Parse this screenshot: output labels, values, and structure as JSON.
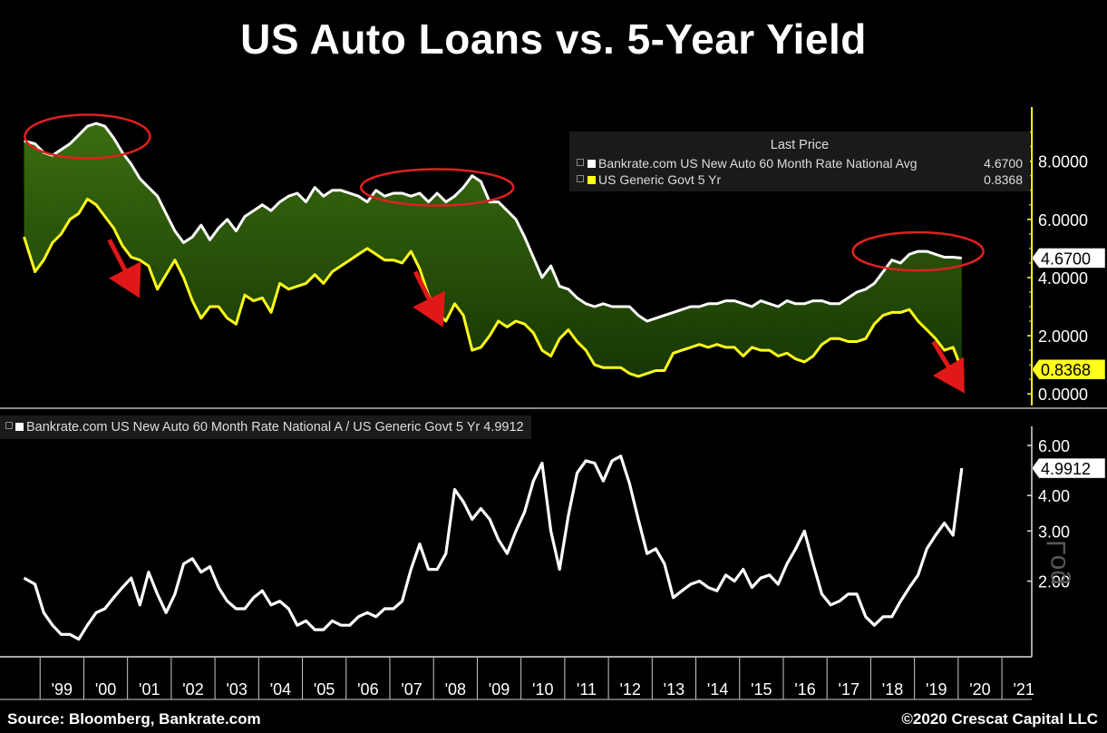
{
  "title": "US Auto Loans vs. 5-Year Yield",
  "footer": {
    "source": "Source: Bloomberg, Bankrate.com",
    "copyright": "©2020 Crescat Capital LLC"
  },
  "colors": {
    "background": "#000000",
    "auto_line": "#ffffff",
    "yield_line": "#ffff1a",
    "fill_top": "#3b6d10",
    "fill_bottom": "#173704",
    "annotation_circle": "#e02020",
    "arrow": "#e01818"
  },
  "upper_legend": {
    "header": "Last Price",
    "rows": [
      {
        "label": "Bankrate.com US New Auto 60 Month Rate National Avg",
        "value": "4.6700",
        "color": "#ffffff"
      },
      {
        "label": "US Generic Govt 5 Yr",
        "value": "0.8368",
        "color": "#ffff1a"
      }
    ]
  },
  "lower_legend": {
    "label": "Bankrate.com US New Auto 60 Month Rate National A / US Generic Govt 5 Yr",
    "value": "4.9912"
  },
  "log_label": "Log",
  "chart_data": [
    {
      "type": "area",
      "title": "",
      "y_scale": "linear",
      "ylim": [
        -0.4,
        9.8
      ],
      "y_ticks": [
        "0.0000",
        "2.0000",
        "4.0000",
        "6.0000",
        "8.0000"
      ],
      "x_ticks": [
        "'99",
        "'00",
        "'01",
        "'02",
        "'03",
        "'04",
        "'05",
        "'06",
        "'07",
        "'08",
        "'09",
        "'10",
        "'11",
        "'12",
        "'13",
        "'14",
        "'15",
        "'16",
        "'17",
        "'18",
        "'19",
        "'20",
        "'21"
      ],
      "last_value_tags": [
        "4.6700",
        "0.8368"
      ],
      "annotations": [
        "circle ~1999.6-2000.4 peak",
        "circle ~2007.2-2008.7 peak",
        "circle ~2018.5-2019.5 peak",
        "down arrows near 2000, 2007, 2019"
      ],
      "series": [
        {
          "name": "Bankrate.com US New Auto 60 Month Rate National Avg",
          "x": [
            1998.55,
            1998.8,
            1999.0,
            1999.2,
            1999.4,
            1999.6,
            1999.8,
            2000.0,
            2000.2,
            2000.4,
            2000.6,
            2000.8,
            2001.0,
            2001.2,
            2001.4,
            2001.6,
            2001.8,
            2002.0,
            2002.2,
            2002.4,
            2002.6,
            2002.8,
            2003.0,
            2003.2,
            2003.4,
            2003.6,
            2003.8,
            2004.0,
            2004.2,
            2004.4,
            2004.6,
            2004.8,
            2005.0,
            2005.2,
            2005.4,
            2005.6,
            2005.8,
            2006.0,
            2006.2,
            2006.4,
            2006.6,
            2006.8,
            2007.0,
            2007.2,
            2007.4,
            2007.6,
            2007.8,
            2008.0,
            2008.2,
            2008.4,
            2008.6,
            2008.8,
            2009.0,
            2009.2,
            2009.4,
            2009.6,
            2009.8,
            2010.0,
            2010.2,
            2010.4,
            2010.6,
            2010.8,
            2011.0,
            2011.2,
            2011.4,
            2011.6,
            2011.8,
            2012.0,
            2012.2,
            2012.4,
            2012.6,
            2012.8,
            2013.0,
            2013.2,
            2013.4,
            2013.6,
            2013.8,
            2014.0,
            2014.2,
            2014.4,
            2014.6,
            2014.8,
            2015.0,
            2015.2,
            2015.4,
            2015.6,
            2015.8,
            2016.0,
            2016.2,
            2016.4,
            2016.6,
            2016.8,
            2017.0,
            2017.2,
            2017.4,
            2017.6,
            2017.8,
            2018.0,
            2018.2,
            2018.4,
            2018.6,
            2018.8,
            2019.0,
            2019.2,
            2019.4,
            2019.6,
            2019.8,
            2020.0
          ],
          "values": [
            8.7,
            8.6,
            8.3,
            8.2,
            8.4,
            8.6,
            8.9,
            9.2,
            9.3,
            9.2,
            8.8,
            8.3,
            7.9,
            7.4,
            7.1,
            6.8,
            6.2,
            5.6,
            5.2,
            5.4,
            5.8,
            5.3,
            5.7,
            6.0,
            5.6,
            6.1,
            6.3,
            6.5,
            6.3,
            6.6,
            6.8,
            6.9,
            6.6,
            7.1,
            6.8,
            7.0,
            7.0,
            6.9,
            6.8,
            6.6,
            7.0,
            6.8,
            6.9,
            6.9,
            6.8,
            6.9,
            6.6,
            6.9,
            6.6,
            6.8,
            7.1,
            7.5,
            7.3,
            6.6,
            6.6,
            6.3,
            6.0,
            5.4,
            4.7,
            4.0,
            4.4,
            3.7,
            3.6,
            3.3,
            3.1,
            3.0,
            3.1,
            3.0,
            3.0,
            3.0,
            2.7,
            2.5,
            2.6,
            2.7,
            2.8,
            2.9,
            3.0,
            3.0,
            3.1,
            3.1,
            3.2,
            3.2,
            3.1,
            3.0,
            3.2,
            3.1,
            3.0,
            3.2,
            3.1,
            3.1,
            3.2,
            3.2,
            3.1,
            3.1,
            3.3,
            3.5,
            3.6,
            3.8,
            4.2,
            4.6,
            4.5,
            4.8,
            4.9,
            4.9,
            4.8,
            4.7,
            4.7,
            4.67
          ]
        },
        {
          "name": "US Generic Govt 5 Yr",
          "x": [
            1998.55,
            1998.8,
            1999.0,
            1999.2,
            1999.4,
            1999.6,
            1999.8,
            2000.0,
            2000.2,
            2000.4,
            2000.6,
            2000.8,
            2001.0,
            2001.2,
            2001.4,
            2001.6,
            2001.8,
            2002.0,
            2002.2,
            2002.4,
            2002.6,
            2002.8,
            2003.0,
            2003.2,
            2003.4,
            2003.6,
            2003.8,
            2004.0,
            2004.2,
            2004.4,
            2004.6,
            2004.8,
            2005.0,
            2005.2,
            2005.4,
            2005.6,
            2005.8,
            2006.0,
            2006.2,
            2006.4,
            2006.6,
            2006.8,
            2007.0,
            2007.2,
            2007.4,
            2007.6,
            2007.8,
            2008.0,
            2008.2,
            2008.4,
            2008.6,
            2008.8,
            2009.0,
            2009.2,
            2009.4,
            2009.6,
            2009.8,
            2010.0,
            2010.2,
            2010.4,
            2010.6,
            2010.8,
            2011.0,
            2011.2,
            2011.4,
            2011.6,
            2011.8,
            2012.0,
            2012.2,
            2012.4,
            2012.6,
            2012.8,
            2013.0,
            2013.2,
            2013.4,
            2013.6,
            2013.8,
            2014.0,
            2014.2,
            2014.4,
            2014.6,
            2014.8,
            2015.0,
            2015.2,
            2015.4,
            2015.6,
            2015.8,
            2016.0,
            2016.2,
            2016.4,
            2016.6,
            2016.8,
            2017.0,
            2017.2,
            2017.4,
            2017.6,
            2017.8,
            2018.0,
            2018.2,
            2018.4,
            2018.6,
            2018.8,
            2019.0,
            2019.2,
            2019.4,
            2019.6,
            2019.8,
            2020.0
          ],
          "values": [
            5.4,
            4.2,
            4.6,
            5.2,
            5.5,
            6.0,
            6.2,
            6.7,
            6.5,
            6.1,
            5.7,
            5.1,
            4.7,
            4.6,
            4.4,
            3.6,
            4.1,
            4.6,
            4.0,
            3.2,
            2.6,
            3.0,
            3.0,
            2.6,
            2.4,
            3.4,
            3.2,
            3.3,
            2.8,
            3.8,
            3.6,
            3.7,
            3.8,
            4.1,
            3.8,
            4.2,
            4.4,
            4.6,
            4.8,
            5.0,
            4.8,
            4.6,
            4.6,
            4.5,
            4.9,
            4.3,
            3.4,
            2.8,
            2.5,
            3.1,
            2.7,
            1.5,
            1.6,
            2.0,
            2.5,
            2.3,
            2.5,
            2.4,
            2.1,
            1.5,
            1.3,
            1.9,
            2.2,
            1.8,
            1.5,
            1.0,
            0.9,
            0.9,
            0.9,
            0.7,
            0.6,
            0.7,
            0.8,
            0.8,
            1.4,
            1.5,
            1.6,
            1.7,
            1.6,
            1.7,
            1.6,
            1.6,
            1.3,
            1.6,
            1.5,
            1.5,
            1.3,
            1.4,
            1.2,
            1.1,
            1.3,
            1.7,
            1.9,
            1.9,
            1.8,
            1.8,
            1.9,
            2.4,
            2.7,
            2.8,
            2.8,
            2.9,
            2.5,
            2.2,
            1.9,
            1.5,
            1.6,
            0.84
          ]
        }
      ]
    },
    {
      "type": "line",
      "title": "",
      "y_scale": "log",
      "ylim": [
        1.1,
        7.0
      ],
      "y_ticks": [
        "2.00",
        "3.00",
        "4.00",
        "6.00"
      ],
      "last_value_tag": "4.9912",
      "series": [
        {
          "name": "Bankrate.com US New Auto 60 Month Rate National A / US Generic Govt 5 Yr",
          "x": [
            1998.55,
            1998.8,
            1999.0,
            1999.2,
            1999.4,
            1999.6,
            1999.8,
            2000.0,
            2000.2,
            2000.4,
            2000.6,
            2000.8,
            2001.0,
            2001.2,
            2001.4,
            2001.6,
            2001.8,
            2002.0,
            2002.2,
            2002.4,
            2002.6,
            2002.8,
            2003.0,
            2003.2,
            2003.4,
            2003.6,
            2003.8,
            2004.0,
            2004.2,
            2004.4,
            2004.6,
            2004.8,
            2005.0,
            2005.2,
            2005.4,
            2005.6,
            2005.8,
            2006.0,
            2006.2,
            2006.4,
            2006.6,
            2006.8,
            2007.0,
            2007.2,
            2007.4,
            2007.6,
            2007.8,
            2008.0,
            2008.2,
            2008.4,
            2008.6,
            2008.8,
            2009.0,
            2009.2,
            2009.4,
            2009.6,
            2009.8,
            2010.0,
            2010.2,
            2010.4,
            2010.6,
            2010.8,
            2011.0,
            2011.2,
            2011.4,
            2011.6,
            2011.8,
            2012.0,
            2012.2,
            2012.4,
            2012.6,
            2012.8,
            2013.0,
            2013.2,
            2013.4,
            2013.6,
            2013.8,
            2014.0,
            2014.2,
            2014.4,
            2014.6,
            2014.8,
            2015.0,
            2015.2,
            2015.4,
            2015.6,
            2015.8,
            2016.0,
            2016.2,
            2016.4,
            2016.6,
            2016.8,
            2017.0,
            2017.2,
            2017.4,
            2017.6,
            2017.8,
            2018.0,
            2018.2,
            2018.4,
            2018.6,
            2018.8,
            2019.0,
            2019.2,
            2019.4,
            2019.6,
            2019.8,
            2020.0
          ],
          "values": [
            2.05,
            1.95,
            1.55,
            1.4,
            1.3,
            1.3,
            1.25,
            1.4,
            1.55,
            1.6,
            1.75,
            1.9,
            2.05,
            1.65,
            2.15,
            1.8,
            1.55,
            1.8,
            2.3,
            2.4,
            2.15,
            2.25,
            1.9,
            1.7,
            1.6,
            1.6,
            1.75,
            1.85,
            1.65,
            1.7,
            1.6,
            1.4,
            1.45,
            1.35,
            1.35,
            1.45,
            1.4,
            1.4,
            1.5,
            1.55,
            1.5,
            1.6,
            1.6,
            1.7,
            2.2,
            2.7,
            2.2,
            2.2,
            2.5,
            4.2,
            3.8,
            3.3,
            3.6,
            3.3,
            2.8,
            2.5,
            3.0,
            3.5,
            4.5,
            5.2,
            3.0,
            2.2,
            3.4,
            4.8,
            5.3,
            5.2,
            4.5,
            5.3,
            5.5,
            4.4,
            3.3,
            2.5,
            2.6,
            2.3,
            1.75,
            1.85,
            1.95,
            2.0,
            1.9,
            1.85,
            2.1,
            2.0,
            2.2,
            1.9,
            2.05,
            2.1,
            1.95,
            2.3,
            2.6,
            3.0,
            2.3,
            1.8,
            1.65,
            1.7,
            1.8,
            1.8,
            1.5,
            1.4,
            1.5,
            1.5,
            1.7,
            1.9,
            2.1,
            2.6,
            2.9,
            3.2,
            2.9,
            4.99
          ]
        }
      ]
    }
  ]
}
